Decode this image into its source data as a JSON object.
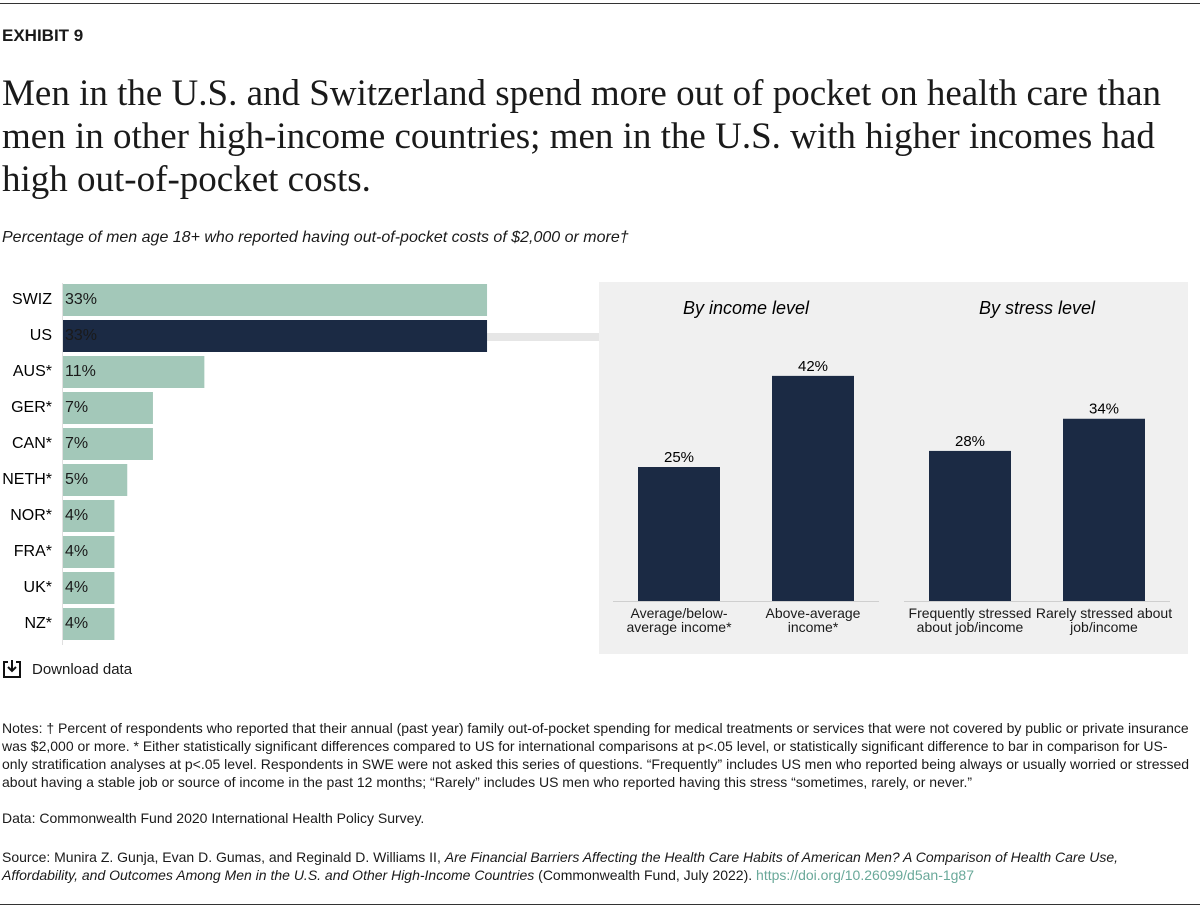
{
  "exhibit": "EXHIBIT 9",
  "title": "Men in the U.S. and Switzerland spend more out of pocket on health care than men in other high-income countries; men in the U.S. with higher incomes had high out-of-pocket costs.",
  "subtitle": "Percentage of men age 18+ who reported having out-of-pocket costs of $2,000 or more†",
  "chart_data": [
    {
      "type": "bar",
      "orientation": "horizontal",
      "categories": [
        "SWIZ",
        "US",
        "AUS*",
        "GER*",
        "CAN*",
        "NETH*",
        "NOR*",
        "FRA*",
        "UK*",
        "NZ*"
      ],
      "values": [
        33,
        33,
        11,
        7,
        7,
        5,
        4,
        4,
        4,
        4
      ],
      "value_labels": [
        "33%",
        "33%",
        "11%",
        "7%",
        "7%",
        "5%",
        "4%",
        "4%",
        "4%",
        "4%"
      ],
      "colors": [
        "#a3c8b9",
        "#1b2a44",
        "#a3c8b9",
        "#a3c8b9",
        "#a3c8b9",
        "#a3c8b9",
        "#a3c8b9",
        "#a3c8b9",
        "#a3c8b9",
        "#a3c8b9"
      ]
    },
    {
      "type": "bar",
      "orientation": "vertical",
      "title": "By income level",
      "categories": [
        "Average/below-average income*",
        "Above-average income*"
      ],
      "values": [
        25,
        42
      ],
      "value_labels": [
        "25%",
        "42%"
      ],
      "color": "#1b2a44"
    },
    {
      "type": "bar",
      "orientation": "vertical",
      "title": "By stress level",
      "categories": [
        "Frequently stressed about job/income",
        "Rarely stressed about job/income"
      ],
      "values": [
        28,
        34
      ],
      "value_labels": [
        "28%",
        "34%"
      ],
      "color": "#1b2a44"
    }
  ],
  "download": "Download data",
  "notes": "Notes: † Percent of respondents who reported that their annual (past year) family out-of-pocket spending for medical treatments or services that were not covered by public or private insurance was $2,000 or more. * Either statistically significant differences compared to US for international comparisons at p<.05 level, or statistically significant difference to bar in comparison for US-only stratification analyses at p<.05 level. Respondents in SWE were not asked this series of questions. “Frequently” includes US men who reported being always or usually worried or stressed about having a stable job or source of income in the past 12 months; “Rarely” includes US men who reported having this stress “sometimes, rarely, or never.”",
  "data_source": "Data: Commonwealth Fund 2020 International Health Policy Survey.",
  "source": {
    "prefix": "Source: Munira Z. Gunja, Evan D. Gumas, and Reginald D. Williams II,",
    "publication": "Are Financial Barriers Affecting the Health Care Habits of American Men? A Comparison of Health Care Use, Affordability, and Outcomes Among Men in the U.S. and Other High-Income Countries",
    "suffix": "(Commonwealth Fund, July 2022).",
    "link": "https://doi.org/10.26099/d5an-1g87"
  }
}
